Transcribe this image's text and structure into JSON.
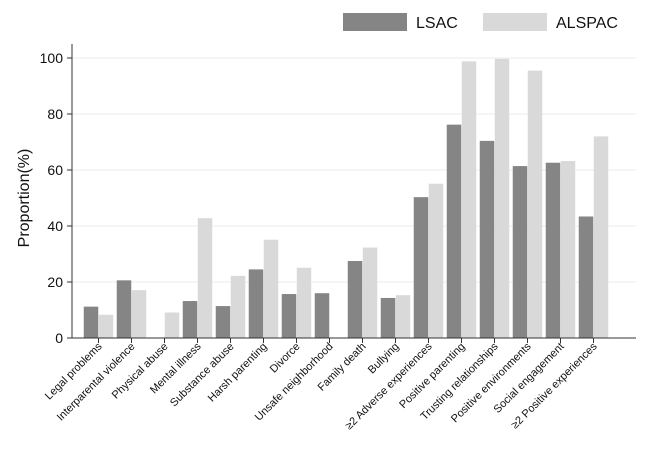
{
  "chart_data": {
    "type": "bar",
    "title": "",
    "xlabel": "",
    "ylabel": "Proportion(%)",
    "ylim": [
      0,
      105
    ],
    "yticks": [
      0,
      20,
      40,
      60,
      80,
      100
    ],
    "grid": "horizontal",
    "legend_position": "top-right",
    "colors": {
      "LSAC": "#858585",
      "ALSPAC": "#d9d9d9",
      "grid": "#ebebeb",
      "axis": "#333333"
    },
    "categories": [
      "Legal problems",
      "Interparental violence",
      "Physical abuse",
      "Mental illness",
      "Substance abuse",
      "Harsh parenting",
      "Divorce",
      "Unsafe neighborhood",
      "Family death",
      "Bullying",
      "≥2 Adverse experiences",
      "Positive parenting",
      "Trusting relationships",
      "Positive environments",
      "Social engagement",
      "≥2 Positive experiences"
    ],
    "series": [
      {
        "name": "LSAC",
        "values": [
          11.2,
          20.6,
          null,
          13.2,
          11.4,
          24.5,
          15.7,
          16.0,
          27.5,
          14.3,
          50.3,
          76.2,
          70.4,
          61.4,
          62.6,
          43.4
        ]
      },
      {
        "name": "ALSPAC",
        "values": [
          8.3,
          17.1,
          9.1,
          42.8,
          22.2,
          35.1,
          25.1,
          null,
          32.3,
          15.3,
          55.1,
          98.8,
          99.7,
          95.5,
          63.2,
          72.0
        ]
      }
    ]
  }
}
